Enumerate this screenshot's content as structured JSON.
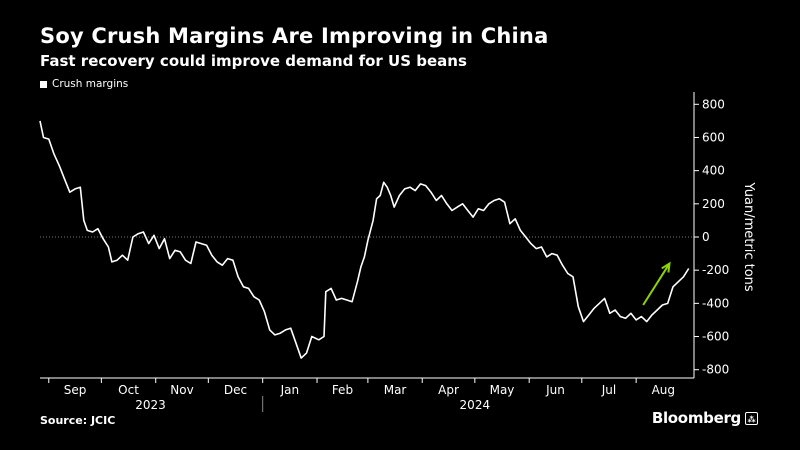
{
  "header": {
    "title": "Soy Crush Margins Are Improving in China",
    "subtitle": "Fast recovery could improve demand for US beans",
    "legend_label": "Crush margins"
  },
  "footer": {
    "source": "Source: JCIC",
    "brand": "Bloomberg"
  },
  "colors": {
    "background": "#000000",
    "line": "#ffffff",
    "arrow": "#8dd400",
    "zero_line": "#777777"
  },
  "chart_data": {
    "type": "line",
    "title": "Soy Crush Margins Are Improving in China",
    "subtitle": "Fast recovery could improve demand for US beans",
    "ylabel": "Yuan/metric tons",
    "ylim": [
      -850,
      850
    ],
    "yticks": [
      800,
      600,
      400,
      200,
      0,
      -200,
      -400,
      -600,
      -800
    ],
    "y_axis_side": "right",
    "grid": false,
    "legend": "top-left",
    "x_range": [
      "2023-08-27",
      "2024-09-03"
    ],
    "month_labels": [
      "Sep",
      "Oct",
      "Nov",
      "Dec",
      "Jan",
      "Feb",
      "Mar",
      "Apr",
      "May",
      "Jun",
      "Jul",
      "Aug"
    ],
    "month_starts": [
      "2023-09-01",
      "2023-10-01",
      "2023-11-01",
      "2023-12-01",
      "2024-01-01",
      "2024-02-01",
      "2024-03-01",
      "2024-04-01",
      "2024-05-01",
      "2024-06-01",
      "2024-07-01",
      "2024-08-01"
    ],
    "year_labels": [
      {
        "label": "2023",
        "center": "2023-10-29"
      },
      {
        "label": "2024",
        "center": "2024-05-01"
      }
    ],
    "year_divider": "2024-01-01",
    "series": [
      {
        "name": "Crush margins",
        "points": [
          [
            "2023-08-27",
            700
          ],
          [
            "2023-08-29",
            600
          ],
          [
            "2023-09-01",
            590
          ],
          [
            "2023-09-04",
            500
          ],
          [
            "2023-09-07",
            430
          ],
          [
            "2023-09-10",
            350
          ],
          [
            "2023-09-13",
            270
          ],
          [
            "2023-09-16",
            290
          ],
          [
            "2023-09-19",
            300
          ],
          [
            "2023-09-21",
            100
          ],
          [
            "2023-09-23",
            40
          ],
          [
            "2023-09-26",
            30
          ],
          [
            "2023-09-29",
            50
          ],
          [
            "2023-10-02",
            -10
          ],
          [
            "2023-10-05",
            -60
          ],
          [
            "2023-10-07",
            -150
          ],
          [
            "2023-10-10",
            -140
          ],
          [
            "2023-10-13",
            -110
          ],
          [
            "2023-10-16",
            -140
          ],
          [
            "2023-10-19",
            0
          ],
          [
            "2023-10-22",
            20
          ],
          [
            "2023-10-25",
            30
          ],
          [
            "2023-10-28",
            -40
          ],
          [
            "2023-10-31",
            10
          ],
          [
            "2023-11-03",
            -70
          ],
          [
            "2023-11-06",
            -10
          ],
          [
            "2023-11-09",
            -130
          ],
          [
            "2023-11-12",
            -80
          ],
          [
            "2023-11-15",
            -90
          ],
          [
            "2023-11-18",
            -140
          ],
          [
            "2023-11-21",
            -160
          ],
          [
            "2023-11-24",
            -30
          ],
          [
            "2023-11-27",
            -40
          ],
          [
            "2023-11-30",
            -50
          ],
          [
            "2023-12-03",
            -110
          ],
          [
            "2023-12-06",
            -150
          ],
          [
            "2023-12-09",
            -170
          ],
          [
            "2023-12-12",
            -130
          ],
          [
            "2023-12-15",
            -140
          ],
          [
            "2023-12-18",
            -240
          ],
          [
            "2023-12-21",
            -300
          ],
          [
            "2023-12-24",
            -310
          ],
          [
            "2023-12-27",
            -360
          ],
          [
            "2023-12-30",
            -380
          ],
          [
            "2024-01-02",
            -450
          ],
          [
            "2024-01-05",
            -560
          ],
          [
            "2024-01-08",
            -590
          ],
          [
            "2024-01-11",
            -580
          ],
          [
            "2024-01-14",
            -560
          ],
          [
            "2024-01-17",
            -550
          ],
          [
            "2024-01-20",
            -640
          ],
          [
            "2024-01-23",
            -730
          ],
          [
            "2024-01-26",
            -700
          ],
          [
            "2024-01-29",
            -600
          ],
          [
            "2024-02-02",
            -620
          ],
          [
            "2024-02-05",
            -600
          ],
          [
            "2024-02-06",
            -330
          ],
          [
            "2024-02-09",
            -310
          ],
          [
            "2024-02-12",
            -380
          ],
          [
            "2024-02-15",
            -370
          ],
          [
            "2024-02-18",
            -380
          ],
          [
            "2024-02-21",
            -390
          ],
          [
            "2024-02-24",
            -270
          ],
          [
            "2024-02-26",
            -180
          ],
          [
            "2024-02-28",
            -120
          ],
          [
            "2024-03-01",
            -20
          ],
          [
            "2024-03-04",
            100
          ],
          [
            "2024-03-06",
            230
          ],
          [
            "2024-03-08",
            250
          ],
          [
            "2024-03-10",
            330
          ],
          [
            "2024-03-12",
            300
          ],
          [
            "2024-03-14",
            250
          ],
          [
            "2024-03-16",
            180
          ],
          [
            "2024-03-19",
            250
          ],
          [
            "2024-03-22",
            290
          ],
          [
            "2024-03-25",
            300
          ],
          [
            "2024-03-28",
            280
          ],
          [
            "2024-03-31",
            320
          ],
          [
            "2024-04-03",
            310
          ],
          [
            "2024-04-06",
            270
          ],
          [
            "2024-04-09",
            220
          ],
          [
            "2024-04-12",
            250
          ],
          [
            "2024-04-15",
            200
          ],
          [
            "2024-04-18",
            160
          ],
          [
            "2024-04-21",
            180
          ],
          [
            "2024-04-24",
            200
          ],
          [
            "2024-04-27",
            160
          ],
          [
            "2024-04-30",
            120
          ],
          [
            "2024-05-03",
            170
          ],
          [
            "2024-05-06",
            160
          ],
          [
            "2024-05-09",
            200
          ],
          [
            "2024-05-12",
            220
          ],
          [
            "2024-05-15",
            230
          ],
          [
            "2024-05-18",
            210
          ],
          [
            "2024-05-21",
            80
          ],
          [
            "2024-05-24",
            110
          ],
          [
            "2024-05-27",
            40
          ],
          [
            "2024-05-30",
            0
          ],
          [
            "2024-06-02",
            -40
          ],
          [
            "2024-06-05",
            -70
          ],
          [
            "2024-06-08",
            -60
          ],
          [
            "2024-06-11",
            -120
          ],
          [
            "2024-06-14",
            -100
          ],
          [
            "2024-06-17",
            -110
          ],
          [
            "2024-06-20",
            -170
          ],
          [
            "2024-06-23",
            -220
          ],
          [
            "2024-06-26",
            -240
          ],
          [
            "2024-06-29",
            -420
          ],
          [
            "2024-07-02",
            -510
          ],
          [
            "2024-07-05",
            -470
          ],
          [
            "2024-07-08",
            -430
          ],
          [
            "2024-07-11",
            -400
          ],
          [
            "2024-07-14",
            -370
          ],
          [
            "2024-07-17",
            -460
          ],
          [
            "2024-07-20",
            -440
          ],
          [
            "2024-07-23",
            -480
          ],
          [
            "2024-07-26",
            -490
          ],
          [
            "2024-07-29",
            -460
          ],
          [
            "2024-08-01",
            -500
          ],
          [
            "2024-08-04",
            -480
          ],
          [
            "2024-08-07",
            -510
          ],
          [
            "2024-08-10",
            -470
          ],
          [
            "2024-08-13",
            -440
          ],
          [
            "2024-08-16",
            -410
          ],
          [
            "2024-08-19",
            -400
          ],
          [
            "2024-08-22",
            -300
          ],
          [
            "2024-08-25",
            -270
          ],
          [
            "2024-08-28",
            -240
          ],
          [
            "2024-08-31",
            -190
          ]
        ]
      }
    ],
    "annotation_arrow": {
      "from": [
        "2024-08-05",
        -410
      ],
      "to": [
        "2024-08-20",
        -160
      ]
    }
  }
}
